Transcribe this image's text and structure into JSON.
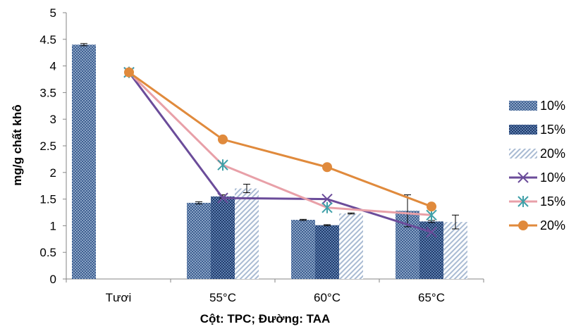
{
  "chart_data": {
    "type": "bar",
    "categories": [
      "Tươi",
      "55°C",
      "60°C",
      "65°C"
    ],
    "xlabel": "Cột: TPC; Đường: TAA",
    "ylabel": "mg/g chất khô",
    "ylim": [
      0,
      5
    ],
    "yticks": [
      "0",
      "0.5",
      "1",
      "1.5",
      "2",
      "2.5",
      "3",
      "3.5",
      "4",
      "4.5",
      "5"
    ],
    "grid": false,
    "legend_position": "right",
    "bar_series": [
      {
        "name": "10%",
        "values": [
          4.4,
          1.43,
          1.11,
          1.28
        ],
        "errors": [
          0.02,
          0.02,
          0.01,
          0.3
        ],
        "color": "#4a6fa5"
      },
      {
        "name": "15%",
        "values": [
          null,
          1.55,
          1.01,
          1.08
        ],
        "errors": [
          null,
          0.03,
          0.01,
          0.02
        ],
        "color": "#2f4f7f"
      },
      {
        "name": "20%",
        "values": [
          null,
          1.7,
          1.23,
          1.07
        ],
        "errors": [
          null,
          0.08,
          0.01,
          0.13
        ],
        "color": "#9fb3cc"
      }
    ],
    "line_series": [
      {
        "name": "10%",
        "marker": "x",
        "values": [
          3.88,
          1.52,
          1.5,
          0.88
        ],
        "color": "#6b4c9a"
      },
      {
        "name": "15%",
        "marker": "star",
        "values": [
          3.88,
          2.14,
          1.34,
          1.2
        ],
        "color": "#e8a0a8"
      },
      {
        "name": "20%",
        "marker": "circle",
        "values": [
          3.88,
          2.62,
          2.1,
          1.36
        ],
        "color": "#e08a3c"
      }
    ]
  }
}
